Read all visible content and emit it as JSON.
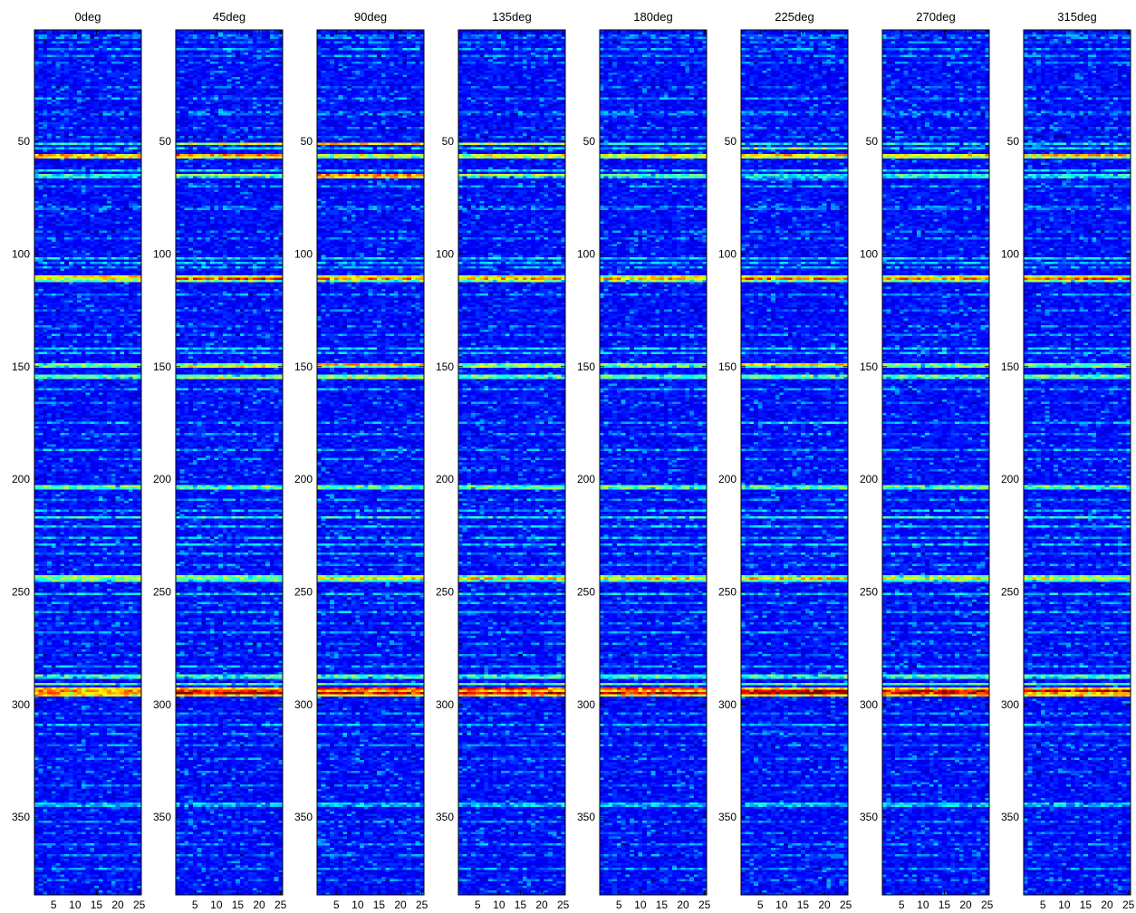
{
  "chart_data": {
    "type": "heatmap",
    "colormap": "jet",
    "colormap_stops": [
      "#00008F",
      "#0000FF",
      "#00FFFF",
      "#FFFF00",
      "#FF0000",
      "#800000"
    ],
    "panel_count": 8,
    "x_range": [
      0.5,
      25.5
    ],
    "y_range": [
      1,
      384
    ],
    "y_direction": "down",
    "x_ticks": [
      5,
      10,
      15,
      20,
      25
    ],
    "y_ticks": [
      50,
      100,
      150,
      200,
      250,
      300,
      350
    ],
    "row_bands": [
      {
        "row": 3,
        "level": 0.22
      },
      {
        "row": 4,
        "level": 0.22
      },
      {
        "row": 6,
        "level": 0.2
      },
      {
        "row": 9,
        "level": 0.26
      },
      {
        "row": 12,
        "level": 0.24
      },
      {
        "row": 15,
        "level": 0.2
      },
      {
        "row": 26,
        "level": 0.2
      },
      {
        "row": 31,
        "level": 0.24
      },
      {
        "row": 37,
        "level": 0.22
      },
      {
        "row": 38,
        "level": 0.22
      },
      {
        "row": 44,
        "level": 0.2
      },
      {
        "row": 48,
        "level": 0.2
      },
      {
        "row": 51,
        "level": 0.36
      },
      {
        "row": 53,
        "level": 0.32
      },
      {
        "row": 56,
        "level": 0.6
      },
      {
        "row": 57,
        "level": 0.56
      },
      {
        "row": 63,
        "level": 0.34
      },
      {
        "row": 65,
        "level": 0.4
      },
      {
        "row": 66,
        "level": 0.36
      },
      {
        "row": 70,
        "level": 0.24
      },
      {
        "row": 79,
        "level": 0.22
      },
      {
        "row": 80,
        "level": 0.22
      },
      {
        "row": 90,
        "level": 0.2
      },
      {
        "row": 93,
        "level": 0.22
      },
      {
        "row": 102,
        "level": 0.32
      },
      {
        "row": 104,
        "level": 0.3
      },
      {
        "row": 106,
        "level": 0.26
      },
      {
        "row": 110,
        "level": 0.6
      },
      {
        "row": 111,
        "level": 0.62
      },
      {
        "row": 112,
        "level": 0.5
      },
      {
        "row": 118,
        "level": 0.24
      },
      {
        "row": 125,
        "level": 0.2
      },
      {
        "row": 132,
        "level": 0.22
      },
      {
        "row": 136,
        "level": 0.24
      },
      {
        "row": 142,
        "level": 0.32
      },
      {
        "row": 144,
        "level": 0.28
      },
      {
        "row": 149,
        "level": 0.5
      },
      {
        "row": 150,
        "level": 0.46
      },
      {
        "row": 154,
        "level": 0.46
      },
      {
        "row": 155,
        "level": 0.44
      },
      {
        "row": 160,
        "level": 0.26
      },
      {
        "row": 166,
        "level": 0.2
      },
      {
        "row": 175,
        "level": 0.26
      },
      {
        "row": 180,
        "level": 0.24
      },
      {
        "row": 187,
        "level": 0.28
      },
      {
        "row": 191,
        "level": 0.22
      },
      {
        "row": 196,
        "level": 0.2
      },
      {
        "row": 203,
        "level": 0.46
      },
      {
        "row": 204,
        "level": 0.44
      },
      {
        "row": 209,
        "level": 0.24
      },
      {
        "row": 214,
        "level": 0.28
      },
      {
        "row": 217,
        "level": 0.4
      },
      {
        "row": 221,
        "level": 0.3
      },
      {
        "row": 226,
        "level": 0.28
      },
      {
        "row": 229,
        "level": 0.32
      },
      {
        "row": 233,
        "level": 0.26
      },
      {
        "row": 238,
        "level": 0.24
      },
      {
        "row": 243,
        "level": 0.5
      },
      {
        "row": 244,
        "level": 0.5
      },
      {
        "row": 245,
        "level": 0.46
      },
      {
        "row": 251,
        "level": 0.32
      },
      {
        "row": 255,
        "level": 0.24
      },
      {
        "row": 259,
        "level": 0.26
      },
      {
        "row": 264,
        "level": 0.22
      },
      {
        "row": 268,
        "level": 0.26
      },
      {
        "row": 273,
        "level": 0.22
      },
      {
        "row": 278,
        "level": 0.22
      },
      {
        "row": 283,
        "level": 0.26
      },
      {
        "row": 287,
        "level": 0.44
      },
      {
        "row": 288,
        "level": 0.4
      },
      {
        "row": 291,
        "level": 0.46
      },
      {
        "row": 293,
        "level": 0.66
      },
      {
        "row": 294,
        "level": 0.7
      },
      {
        "row": 295,
        "level": 0.72
      },
      {
        "row": 296,
        "level": 0.66
      },
      {
        "row": 304,
        "level": 0.22
      },
      {
        "row": 309,
        "level": 0.3
      },
      {
        "row": 313,
        "level": 0.24
      },
      {
        "row": 318,
        "level": 0.22
      },
      {
        "row": 324,
        "level": 0.22
      },
      {
        "row": 330,
        "level": 0.2
      },
      {
        "row": 336,
        "level": 0.22
      },
      {
        "row": 344,
        "level": 0.32
      },
      {
        "row": 345,
        "level": 0.3
      },
      {
        "row": 352,
        "level": 0.22
      },
      {
        "row": 357,
        "level": 0.2
      },
      {
        "row": 362,
        "level": 0.24
      },
      {
        "row": 367,
        "level": 0.22
      },
      {
        "row": 373,
        "level": 0.24
      },
      {
        "row": 378,
        "level": 0.2
      }
    ],
    "panels": [
      {
        "title": "0deg",
        "boosts": [
          {
            "row": 56,
            "add": 0.12
          },
          {
            "row": 57,
            "add": 0.1
          },
          {
            "row": 110,
            "add": 0.08
          },
          {
            "row": 243,
            "add": 0.04
          },
          {
            "row": 294,
            "add": 0.04
          }
        ]
      },
      {
        "title": "45deg",
        "boosts": [
          {
            "row": 51,
            "add": 0.22
          },
          {
            "row": 56,
            "add": 0.16
          },
          {
            "row": 65,
            "add": 0.14
          },
          {
            "row": 111,
            "add": 0.22
          },
          {
            "row": 150,
            "add": 0.16
          },
          {
            "row": 155,
            "add": 0.14
          },
          {
            "row": 294,
            "add": 0.18
          },
          {
            "row": 295,
            "add": 0.22
          }
        ]
      },
      {
        "title": "90deg",
        "boosts": [
          {
            "row": 51,
            "add": 0.3
          },
          {
            "row": 65,
            "add": 0.36
          },
          {
            "row": 66,
            "add": 0.3
          },
          {
            "row": 111,
            "add": 0.14
          },
          {
            "row": 149,
            "add": 0.2
          },
          {
            "row": 155,
            "add": 0.16
          },
          {
            "row": 244,
            "add": 0.16
          },
          {
            "row": 293,
            "add": 0.18
          },
          {
            "row": 295,
            "add": 0.24
          }
        ]
      },
      {
        "title": "135deg",
        "boosts": [
          {
            "row": 51,
            "add": 0.2
          },
          {
            "row": 65,
            "add": 0.2
          },
          {
            "row": 111,
            "add": 0.1
          },
          {
            "row": 150,
            "add": 0.08
          },
          {
            "row": 244,
            "add": 0.18
          },
          {
            "row": 293,
            "add": 0.22
          },
          {
            "row": 295,
            "add": 0.2
          }
        ]
      },
      {
        "title": "180deg",
        "boosts": [
          {
            "row": 65,
            "add": 0.06
          },
          {
            "row": 111,
            "add": 0.08
          },
          {
            "row": 244,
            "add": 0.18
          },
          {
            "row": 293,
            "add": 0.2
          },
          {
            "row": 295,
            "add": 0.2
          }
        ]
      },
      {
        "title": "225deg",
        "boosts": [
          {
            "row": 53,
            "add": 0.18
          },
          {
            "row": 56,
            "add": 0.1
          },
          {
            "row": 67,
            "add": 0.14
          },
          {
            "row": 111,
            "add": 0.18
          },
          {
            "row": 149,
            "add": 0.18
          },
          {
            "row": 175,
            "add": 0.1
          },
          {
            "row": 244,
            "add": 0.2
          },
          {
            "row": 294,
            "add": 0.26
          },
          {
            "row": 295,
            "add": 0.28
          }
        ]
      },
      {
        "title": "270deg",
        "boosts": [
          {
            "row": 56,
            "add": 0.06
          },
          {
            "row": 111,
            "add": 0.14
          },
          {
            "row": 244,
            "add": 0.12
          },
          {
            "row": 294,
            "add": 0.2
          },
          {
            "row": 295,
            "add": 0.18
          }
        ]
      },
      {
        "title": "315deg",
        "boosts": [
          {
            "row": 56,
            "add": 0.1
          },
          {
            "row": 111,
            "add": 0.18
          },
          {
            "row": 244,
            "add": 0.1
          },
          {
            "row": 294,
            "add": 0.24
          }
        ]
      }
    ],
    "title": "",
    "xlabel": "",
    "ylabel": ""
  }
}
